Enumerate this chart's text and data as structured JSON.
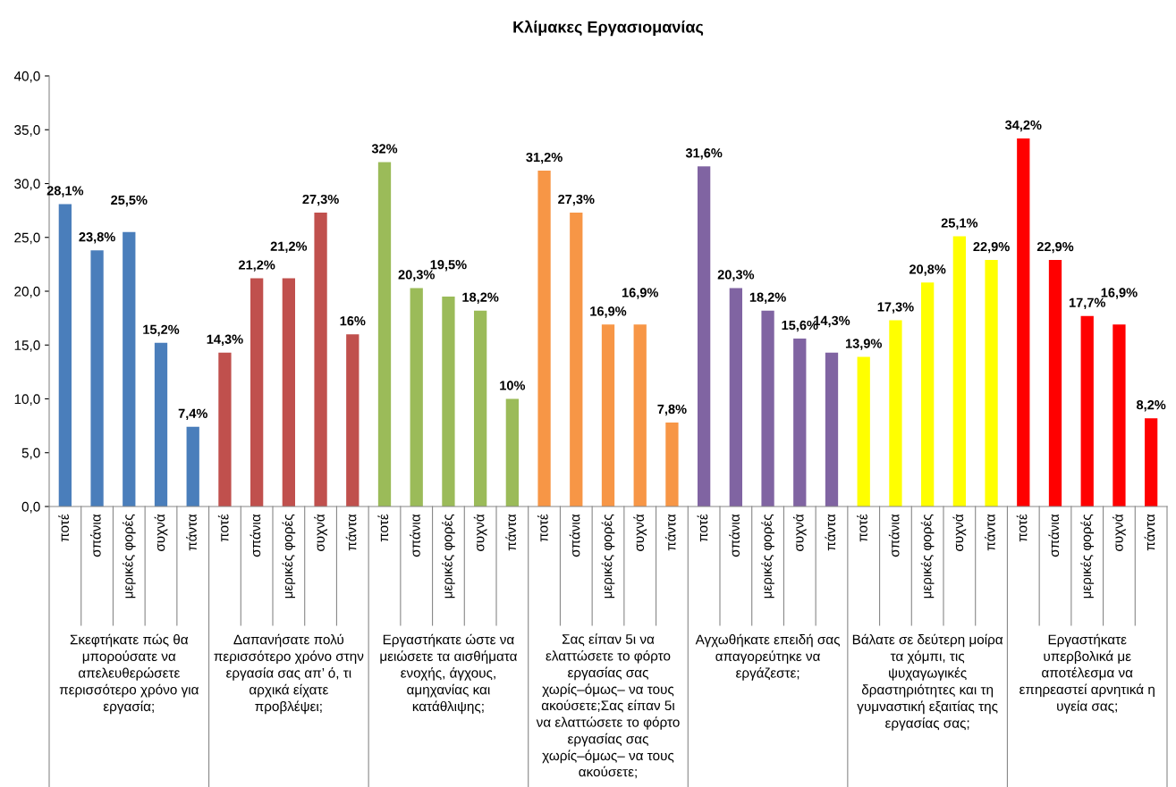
{
  "chart_data": {
    "type": "bar",
    "title": "Κλίμακες Εργασιομανίας",
    "categories": [
      "ποτέ",
      "σπάνια",
      "μερικές φορές",
      "συχνά",
      "πάντα",
      "ποτέ",
      "σπάνια",
      "μερικές φορές",
      "συχνά",
      "πάντα",
      "ποτέ",
      "σπάνια",
      "μερικές φορές",
      "συχνά",
      "πάντα",
      "ποτέ",
      "σπάνια",
      "μερικές φορές",
      "συχνά",
      "πάντα",
      "ποτέ",
      "σπάνια",
      "μερικές φορές",
      "συχνά",
      "πάντα",
      "ποτέ",
      "σπάνια",
      "μερικές φορές",
      "συχνά",
      "πάντα",
      "ποτέ",
      "σπάνια",
      "μερικές φορές",
      "συχνά",
      "πάντα"
    ],
    "values": [
      28.1,
      23.8,
      25.5,
      15.2,
      7.4,
      14.3,
      21.2,
      21.2,
      27.3,
      16,
      32,
      20.3,
      19.5,
      18.2,
      10,
      31.2,
      27.3,
      16.9,
      16.9,
      7.8,
      31.6,
      20.3,
      18.2,
      15.6,
      14.3,
      13.9,
      17.3,
      20.8,
      25.1,
      22.9,
      34.2,
      22.9,
      17.7,
      16.9,
      8.2
    ],
    "value_labels": [
      "28,1%",
      "23,8%",
      "25,5%",
      "15,2%",
      "7,4%",
      "14,3%",
      "21,2%",
      "21,2%",
      "27,3%",
      "16%",
      "32%",
      "20,3%",
      "19,5%",
      "18,2%",
      "10%",
      "31,2%",
      "27,3%",
      "16,9%",
      "16,9%",
      "7,8%",
      "31,6%",
      "20,3%",
      "18,2%",
      "15,6%",
      "14,3%",
      "13,9%",
      "17,3%",
      "20,8%",
      "25,1%",
      "22,9%",
      "34,2%",
      "22,9%",
      "17,7%",
      "16,9%",
      "8,2%"
    ],
    "colors": [
      "#4a7ebb",
      "#4a7ebb",
      "#4a7ebb",
      "#4a7ebb",
      "#4a7ebb",
      "#c0504d",
      "#c0504d",
      "#c0504d",
      "#c0504d",
      "#c0504d",
      "#9bbb59",
      "#9bbb59",
      "#9bbb59",
      "#9bbb59",
      "#9bbb59",
      "#f79646",
      "#f79646",
      "#f79646",
      "#f79646",
      "#f79646",
      "#8064a2",
      "#8064a2",
      "#8064a2",
      "#8064a2",
      "#8064a2",
      "#ffff00",
      "#ffff00",
      "#ffff00",
      "#ffff00",
      "#ffff00",
      "#ff0000",
      "#ff0000",
      "#ff0000",
      "#ff0000",
      "#ff0000"
    ],
    "ylim": [
      0,
      40
    ],
    "yticks": [
      {
        "value": 0,
        "label": "0,0"
      },
      {
        "value": 5,
        "label": "5,0"
      },
      {
        "value": 10,
        "label": "10,0"
      },
      {
        "value": 15,
        "label": "15,0"
      },
      {
        "value": 20,
        "label": "20,0"
      },
      {
        "value": 25,
        "label": "25,0"
      },
      {
        "value": 30,
        "label": "30,0"
      },
      {
        "value": 35,
        "label": "35,0"
      },
      {
        "value": 40,
        "label": "40,0"
      }
    ],
    "grid": false,
    "annotations": [
      "Σκεφτήκατε πώς θα μπορούσατε να απελευθερώσετε περισσότερο χρόνο για εργασία;",
      "Δαπανήσατε πολύ περισσότερο χρόνο στην εργασία σας απ’ ό, τι αρχικά είχατε προβλέψει;",
      "Εργαστήκατε ώστε να μειώσετε τα αισθήματα ενοχής, άγχους, αμηχανίας και κατάθλιψης;",
      "Σας είπαν 5ι να ελαττώσετε το φόρτο εργασίας σας χωρίς–όμως– να τους ακούσετε;Σας είπαν 5ι να ελαττώσετε το φόρτο εργασίας σας χωρίς–όμως– να τους ακούσετε;",
      "Αγχωθήκατε επειδή σας απαγορεύτηκε να εργάζεστε;",
      "Βάλατε σε δεύτερη μοίρα τα χόμπι, τις ψυχαγωγικές δραστηριότητες και τη γυμναστική εξαιτίας της εργασίας σας;",
      "Εργαστήκατε υπερβολικά με αποτέλεσμα να επηρεαστεί αρνητικά η υγεία σας;"
    ]
  }
}
